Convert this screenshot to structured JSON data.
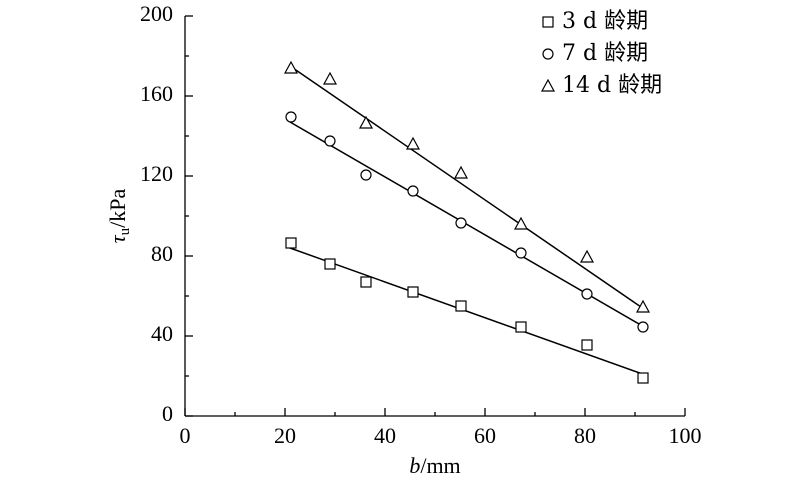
{
  "chart_data": {
    "type": "scatter",
    "xlabel": {
      "symbol": "b",
      "unit": "/mm"
    },
    "ylabel": {
      "symbol": "τ",
      "subscript": "u",
      "unit": "/kPa"
    },
    "xlim": [
      0,
      100
    ],
    "xticks": [
      0,
      20,
      40,
      60,
      80,
      100
    ],
    "ylim": [
      0,
      200
    ],
    "yticks": [
      0,
      40,
      80,
      120,
      160,
      200
    ],
    "legend": "upper right",
    "series": [
      {
        "name": "3 d 龄期",
        "color": "#000000",
        "marker": "square",
        "x": [
          21.2,
          29,
          36.2,
          45.6,
          55.2,
          67.2,
          80.4,
          91.6
        ],
        "values": [
          86.5,
          76,
          67,
          62,
          55,
          44.5,
          35.5,
          19
        ],
        "fit": {
          "x": [
            21,
            91.5
          ],
          "y": [
            84,
            21
          ]
        }
      },
      {
        "name": "7 d 龄期",
        "color": "#000000",
        "marker": "circle",
        "x": [
          21.2,
          29,
          36.2,
          45.6,
          55.2,
          67.2,
          80.4,
          91.6
        ],
        "values": [
          149.5,
          137.5,
          120.5,
          112.5,
          96.5,
          81.5,
          61,
          44.5
        ],
        "fit": {
          "x": [
            21,
            91.5
          ],
          "y": [
            147,
            45
          ]
        }
      },
      {
        "name": "14 d 龄期",
        "color": "#000000",
        "marker": "triangle",
        "x": [
          21.2,
          29,
          36.2,
          45.6,
          55.2,
          67.2,
          80.4,
          91.6
        ],
        "values": [
          174,
          168.5,
          146.5,
          136,
          121.5,
          96,
          79.5,
          54.5
        ],
        "fit": {
          "x": [
            21,
            91.5
          ],
          "y": [
            175,
            54
          ]
        }
      }
    ]
  }
}
